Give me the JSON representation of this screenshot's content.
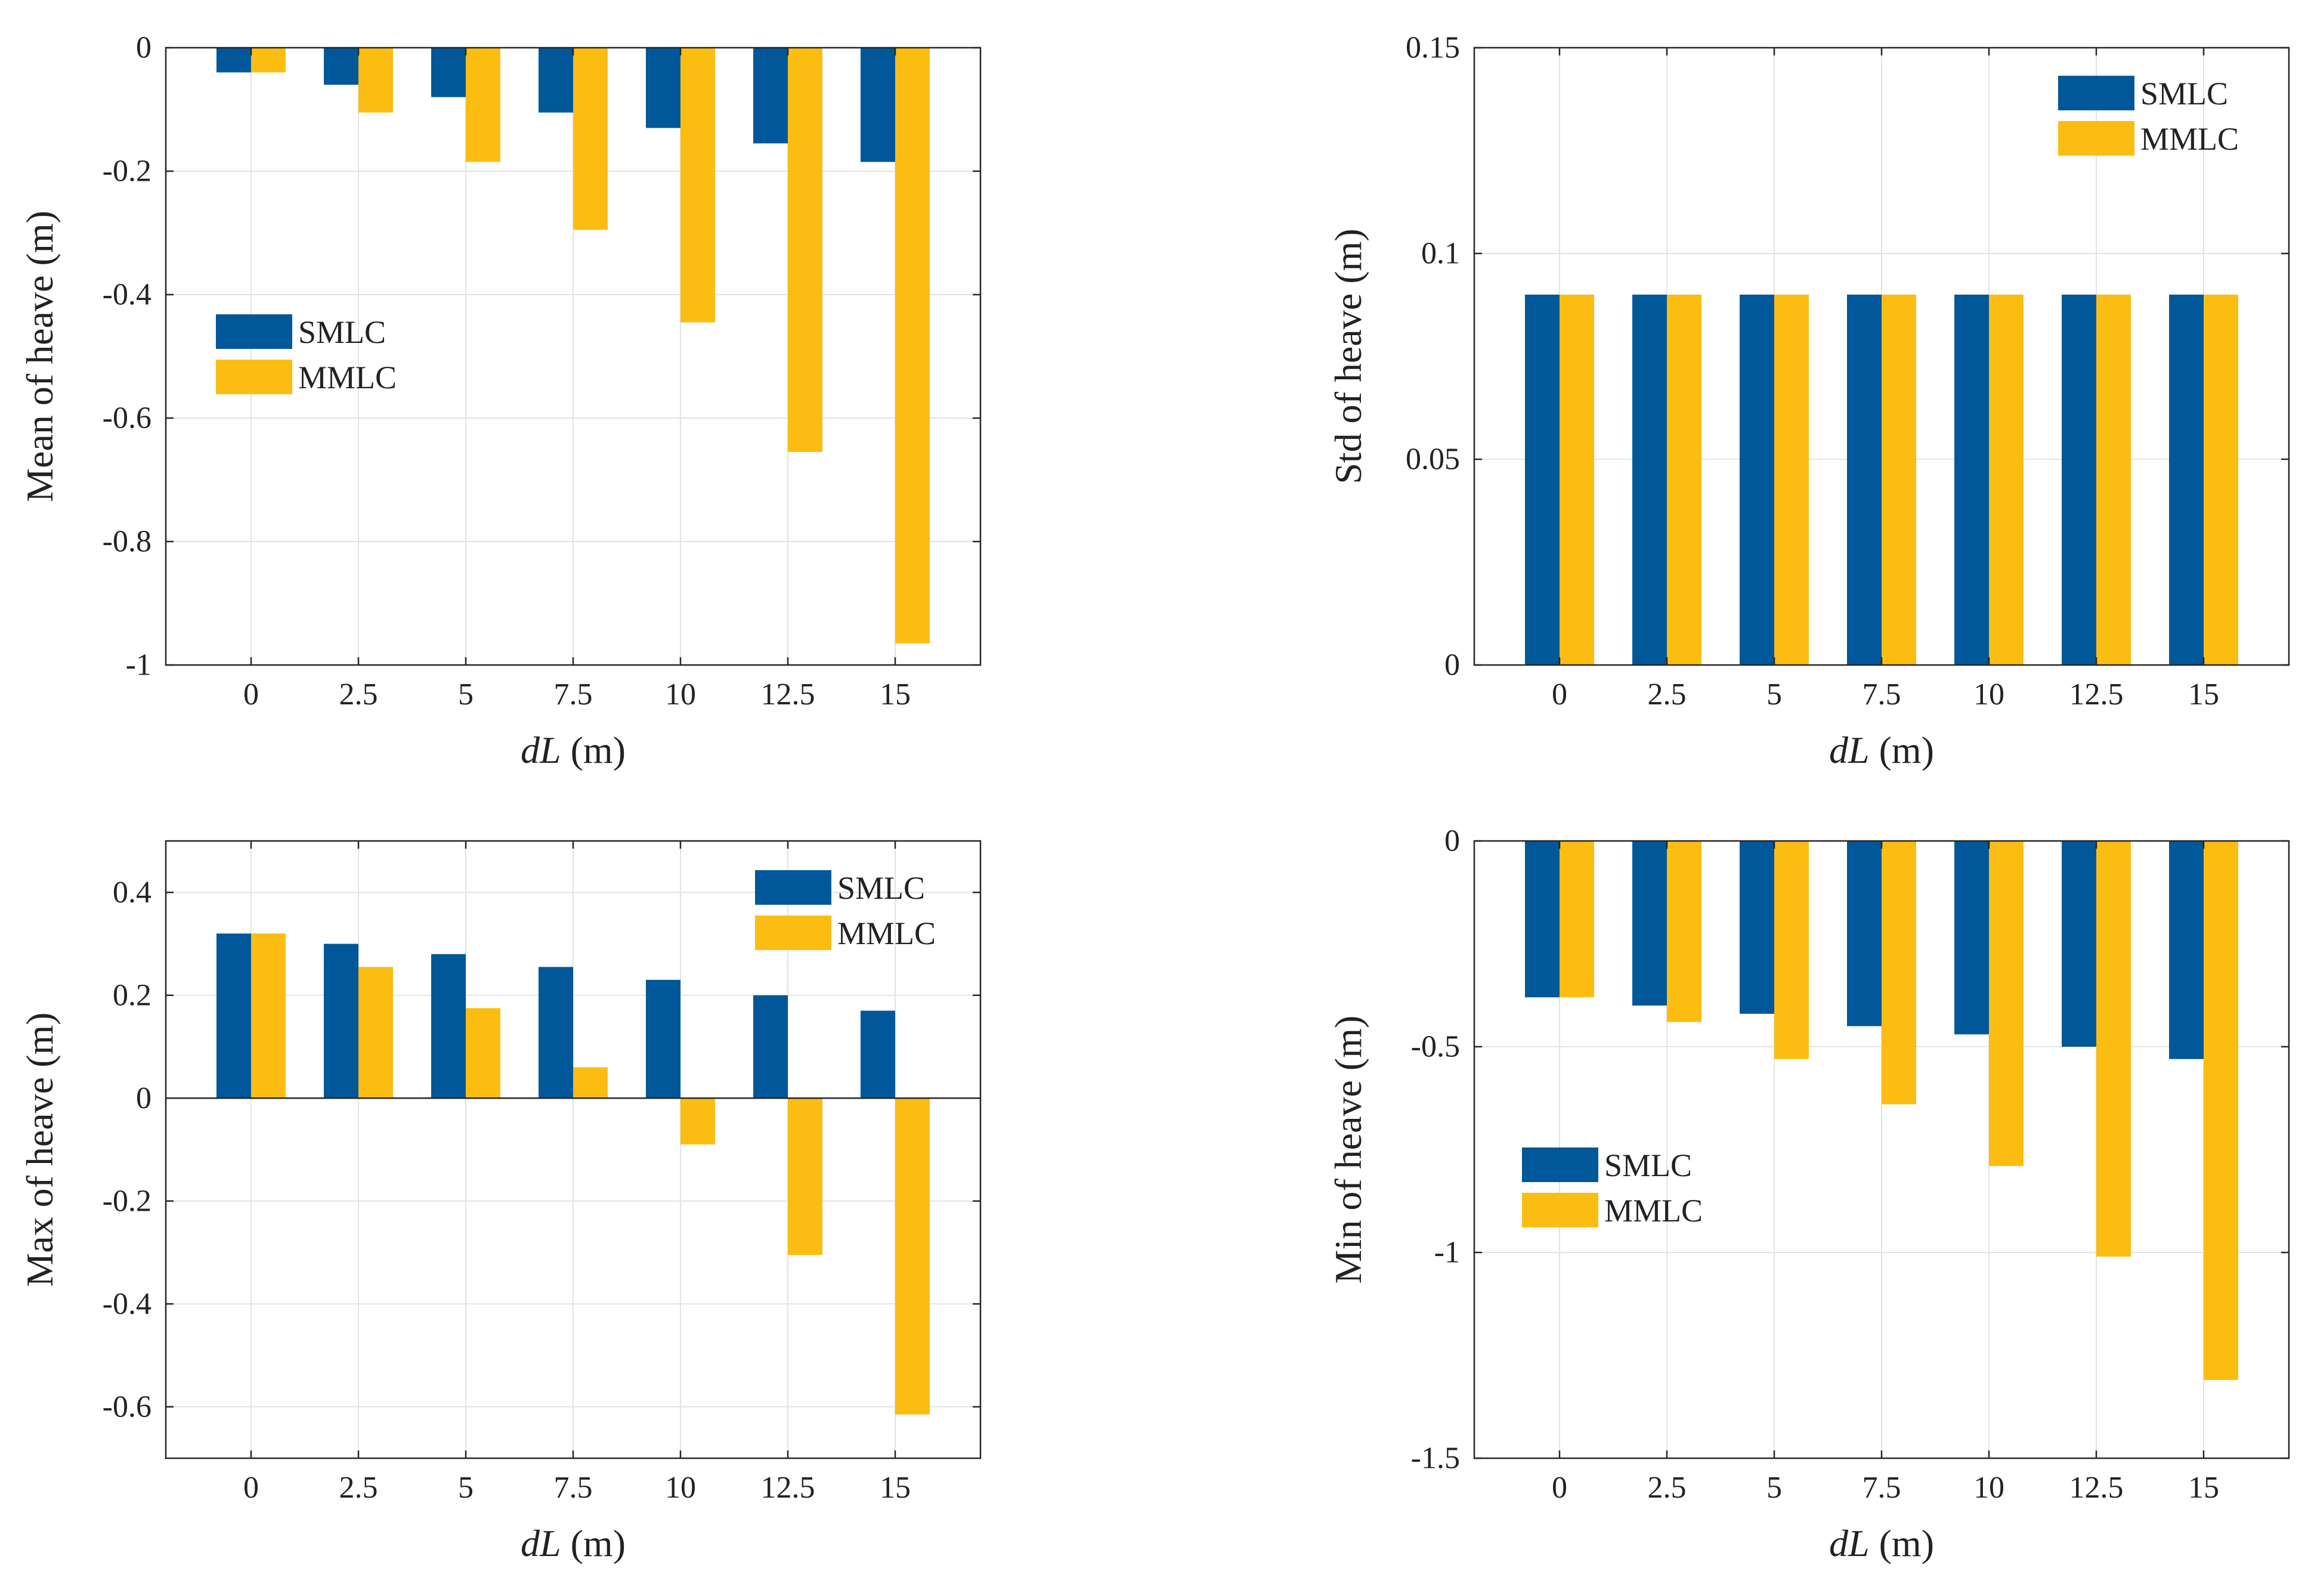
{
  "colors": {
    "series1": "#00579A",
    "series2": "#FCBD13",
    "grid": "#E3E3E3",
    "axis": "#262626"
  },
  "chart_data": [
    {
      "type": "bar",
      "xlabel_italic": "dL",
      "xlabel_unit": " (m)",
      "ylabel": "Mean of heave (m)",
      "categories": [
        "0",
        "2.5",
        "5",
        "7.5",
        "10",
        "12.5",
        "15"
      ],
      "series": [
        {
          "name": "SMLC",
          "values": [
            -0.04,
            -0.06,
            -0.08,
            -0.105,
            -0.13,
            -0.155,
            -0.185
          ]
        },
        {
          "name": "MMLC",
          "values": [
            -0.04,
            -0.105,
            -0.185,
            -0.295,
            -0.445,
            -0.655,
            -0.965
          ]
        }
      ],
      "ylim": [
        -1,
        0
      ],
      "yticks": [
        0,
        -0.2,
        -0.4,
        -0.6,
        -0.8,
        -1
      ],
      "ytick_labels": [
        "0",
        "-0.2",
        "-0.4",
        "-0.6",
        "-0.8",
        "-1"
      ],
      "legend_position": "center-left",
      "grid": true
    },
    {
      "type": "bar",
      "xlabel_italic": "dL",
      "xlabel_unit": " (m)",
      "ylabel": "Std of heave (m)",
      "categories": [
        "0",
        "2.5",
        "5",
        "7.5",
        "10",
        "12.5",
        "15"
      ],
      "series": [
        {
          "name": "SMLC",
          "values": [
            0.09,
            0.09,
            0.09,
            0.09,
            0.09,
            0.09,
            0.09
          ]
        },
        {
          "name": "MMLC",
          "values": [
            0.09,
            0.09,
            0.09,
            0.09,
            0.09,
            0.09,
            0.09
          ]
        }
      ],
      "ylim": [
        0,
        0.15
      ],
      "yticks": [
        0,
        0.05,
        0.1,
        0.15
      ],
      "ytick_labels": [
        "0",
        "0.05",
        "0.1",
        "0.15"
      ],
      "legend_position": "top-right",
      "grid": true
    },
    {
      "type": "bar",
      "xlabel_italic": "dL",
      "xlabel_unit": " (m)",
      "ylabel": "Max of heave (m)",
      "categories": [
        "0",
        "2.5",
        "5",
        "7.5",
        "10",
        "12.5",
        "15"
      ],
      "series": [
        {
          "name": "SMLC",
          "values": [
            0.32,
            0.3,
            0.28,
            0.255,
            0.23,
            0.2,
            0.17
          ]
        },
        {
          "name": "MMLC",
          "values": [
            0.32,
            0.255,
            0.175,
            0.06,
            -0.09,
            -0.305,
            -0.615
          ]
        }
      ],
      "ylim": [
        -0.7,
        0.5
      ],
      "yticks": [
        0.4,
        0.2,
        0,
        -0.2,
        -0.4,
        -0.6
      ],
      "ytick_labels": [
        "0.4",
        "0.2",
        "0",
        "-0.2",
        "-0.4",
        "-0.6"
      ],
      "zero_line": true,
      "legend_position": "top-right",
      "grid": true
    },
    {
      "type": "bar",
      "xlabel_italic": "dL",
      "xlabel_unit": " (m)",
      "ylabel": "Min of heave (m)",
      "categories": [
        "0",
        "2.5",
        "5",
        "7.5",
        "10",
        "12.5",
        "15"
      ],
      "series": [
        {
          "name": "SMLC",
          "values": [
            -0.38,
            -0.4,
            -0.42,
            -0.45,
            -0.47,
            -0.5,
            -0.53
          ]
        },
        {
          "name": "MMLC",
          "values": [
            -0.38,
            -0.44,
            -0.53,
            -0.64,
            -0.79,
            -1.01,
            -1.31
          ]
        }
      ],
      "ylim": [
        -1.5,
        0
      ],
      "yticks": [
        0,
        -0.5,
        -1,
        -1.5
      ],
      "ytick_labels": [
        "0",
        "-0.5",
        "-1",
        "-1.5"
      ],
      "legend_position": "center-left",
      "grid": true
    }
  ]
}
